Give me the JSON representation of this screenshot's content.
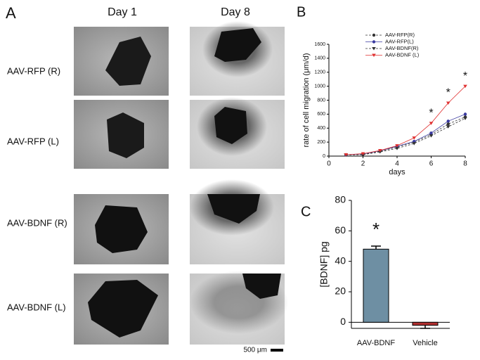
{
  "panel_labels": [
    "A",
    "B",
    "C"
  ],
  "figure_a": {
    "columns": [
      "Day 1",
      "Day 8"
    ],
    "rows": [
      "AAV-RFP (R)",
      "AAV-RFP (L)",
      "AAV-BDNF (R)",
      "AAV-BDNF (L)"
    ],
    "scale_bar": "500 μm"
  },
  "chart_data": [
    {
      "type": "line",
      "x_label": "days",
      "y_label": "rate of cell migration (μm/d)",
      "x": [
        1,
        2,
        3,
        4,
        5,
        6,
        7,
        8
      ],
      "series": [
        {
          "name": "AAV-RFP(R)",
          "color": "#333333",
          "dash": true,
          "marker": "circle",
          "values": [
            20,
            25,
            70,
            130,
            200,
            310,
            460,
            560
          ]
        },
        {
          "name": "AAV-RFP(L)",
          "color": "#3a3aa0",
          "dash": false,
          "marker": "circle",
          "values": [
            20,
            30,
            75,
            140,
            210,
            330,
            500,
            600
          ]
        },
        {
          "name": "AAV-BDNF(R)",
          "color": "#333333",
          "dash": true,
          "marker": "triangle-down",
          "values": [
            15,
            20,
            60,
            110,
            180,
            290,
            420,
            540
          ]
        },
        {
          "name": "AAV-BDNF (L)",
          "color": "#e03030",
          "dash": false,
          "marker": "triangle-down",
          "values": [
            20,
            35,
            80,
            150,
            260,
            470,
            760,
            1000
          ]
        }
      ],
      "xlim": [
        0,
        8
      ],
      "xticks": [
        0,
        2,
        4,
        6,
        8
      ],
      "ylim": [
        0,
        1600
      ],
      "yticks": [
        0,
        200,
        400,
        600,
        800,
        1000,
        1200,
        1400,
        1600
      ],
      "legend": "upper left",
      "annotations": [
        {
          "text": "*",
          "x": 6
        },
        {
          "text": "*",
          "x": 7
        },
        {
          "text": "*",
          "x": 8
        }
      ]
    },
    {
      "type": "bar",
      "y_label": "[BDNF] pg",
      "categories": [
        "AAV-BDNF",
        "Vehicle"
      ],
      "values": [
        48,
        -2
      ],
      "errors": [
        2,
        2
      ],
      "colors": [
        "#6e8fa3",
        "#b03030"
      ],
      "ylim": [
        -4,
        80
      ],
      "yticks": [
        0,
        20,
        40,
        60,
        80
      ],
      "annotations": [
        {
          "text": "*",
          "x": "AAV-BDNF"
        }
      ]
    }
  ]
}
